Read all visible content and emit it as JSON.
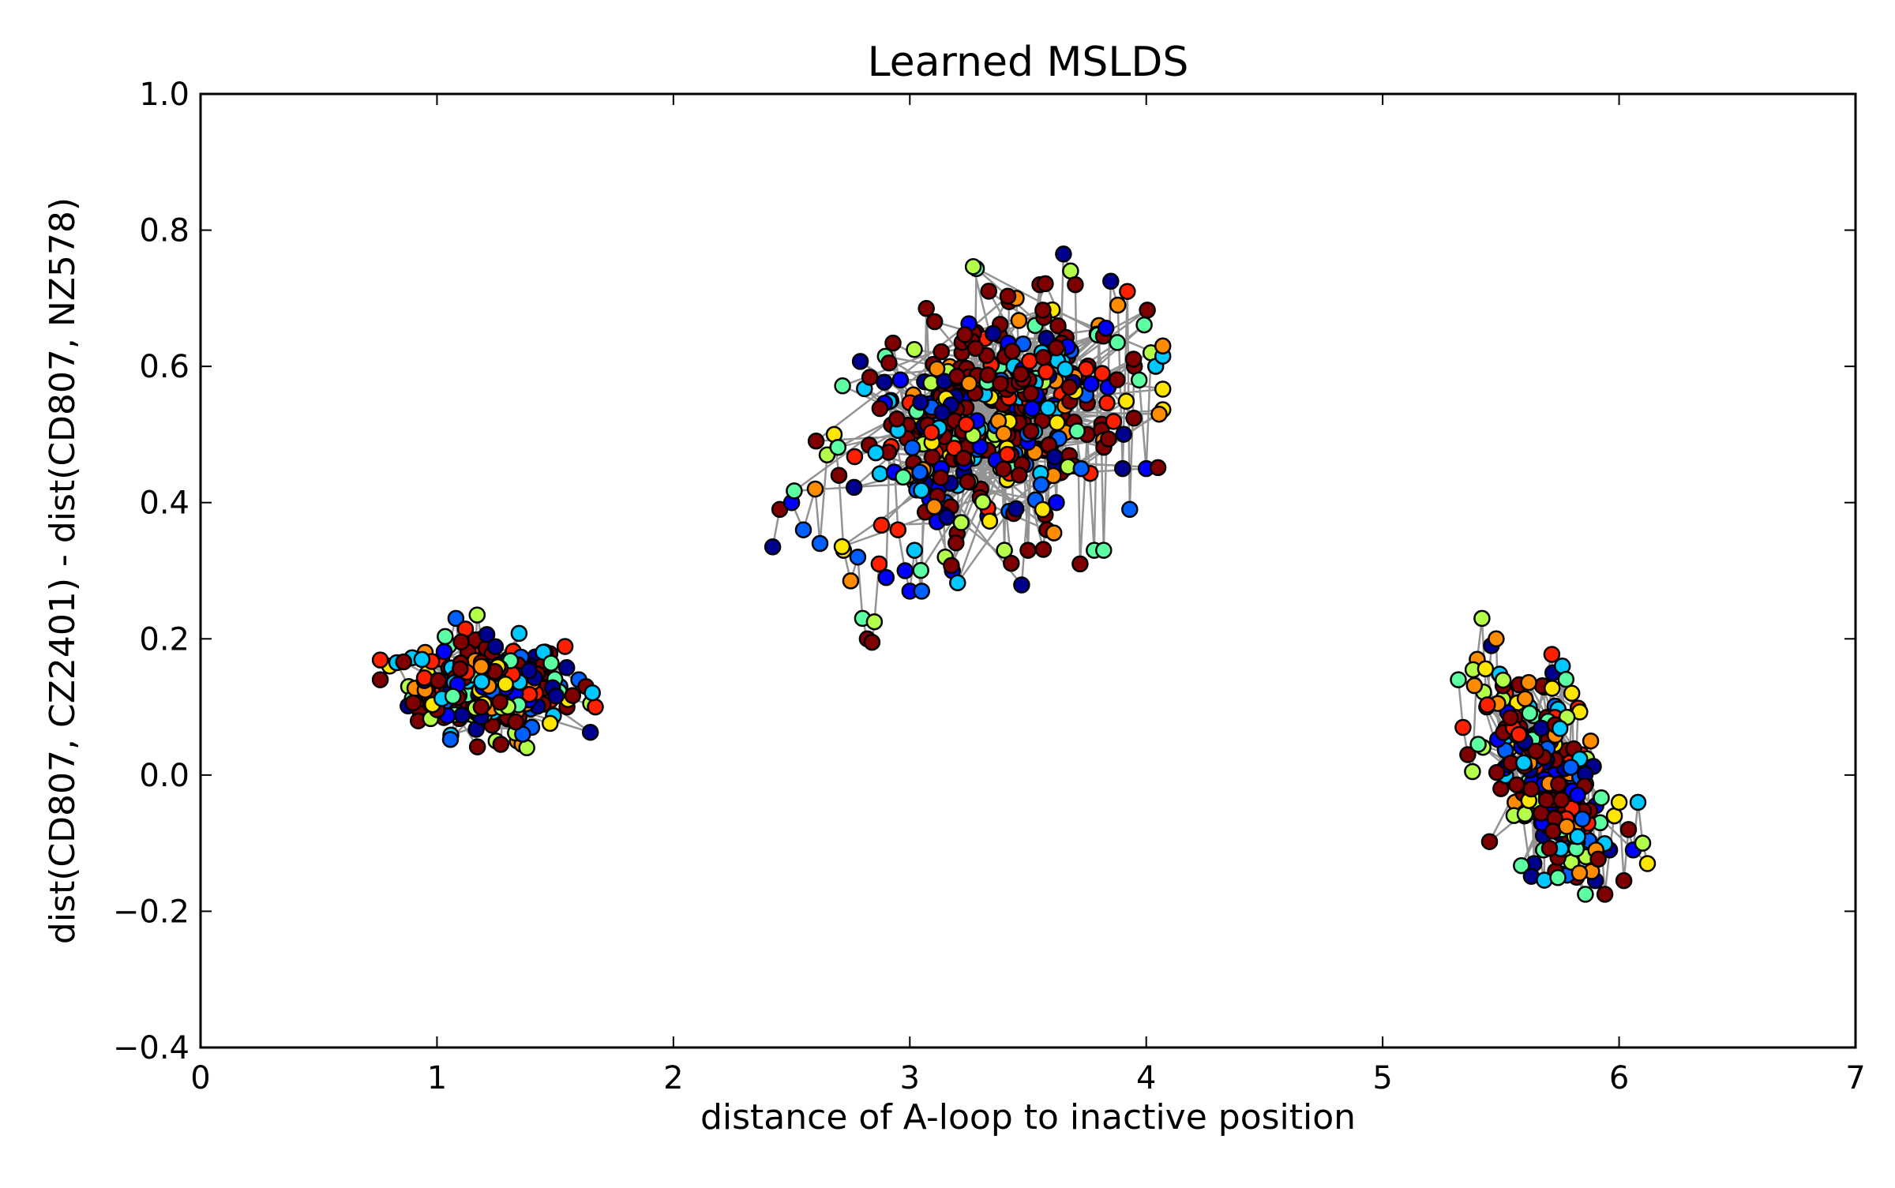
{
  "chart_data": {
    "type": "scatter",
    "title": "Learned MSLDS",
    "xlabel": "distance of A-loop to inactive position",
    "ylabel": "dist(CD807, CZ2401) - dist(CD807, NZ578)",
    "xlim": [
      0,
      7
    ],
    "ylim": [
      -0.4,
      1.0
    ],
    "xticks": [
      0,
      1,
      2,
      3,
      4,
      5,
      6,
      7
    ],
    "xtick_labels": [
      "0",
      "1",
      "2",
      "3",
      "4",
      "5",
      "6",
      "7"
    ],
    "yticks": [
      -0.4,
      -0.2,
      0.0,
      0.2,
      0.4,
      0.6,
      0.8,
      1.0
    ],
    "ytick_labels": [
      "−0.4",
      "−0.2",
      "0.0",
      "0.2",
      "0.4",
      "0.6",
      "0.8",
      "1.0"
    ],
    "grid": false,
    "legend": "none",
    "marker": "circle",
    "line_color": "#808080",
    "marker_edge_color": "#000000",
    "colormap": [
      "#00008f",
      "#0000ff",
      "#0060ff",
      "#00c8ff",
      "#5cffa2",
      "#b4ff4a",
      "#ffe600",
      "#ff8c00",
      "#ff2000",
      "#7f0000"
    ],
    "clusters": [
      {
        "name_hint": "cluster near x=1.2",
        "x_range": [
          0.76,
          1.67
        ],
        "y_range": [
          0.04,
          0.235
        ],
        "center": [
          1.22,
          0.13
        ],
        "points": [
          [
            0.76,
            0.14
          ],
          [
            0.8,
            0.16
          ],
          [
            0.83,
            0.165
          ],
          [
            0.88,
            0.13
          ],
          [
            0.9,
            0.11
          ],
          [
            0.92,
            0.1
          ],
          [
            0.93,
            0.09
          ],
          [
            0.95,
            0.18
          ],
          [
            0.97,
            0.14
          ],
          [
            1.0,
            0.12
          ],
          [
            1.02,
            0.17
          ],
          [
            1.05,
            0.19
          ],
          [
            1.08,
            0.23
          ],
          [
            1.1,
            0.16
          ],
          [
            1.12,
            0.12
          ],
          [
            1.15,
            0.1
          ],
          [
            1.17,
            0.235
          ],
          [
            1.19,
            0.2
          ],
          [
            1.2,
            0.15
          ],
          [
            1.22,
            0.13
          ],
          [
            1.24,
            0.08
          ],
          [
            1.25,
            0.05
          ],
          [
            1.27,
            0.045
          ],
          [
            1.28,
            0.11
          ],
          [
            1.3,
            0.17
          ],
          [
            1.32,
            0.14
          ],
          [
            1.34,
            0.05
          ],
          [
            1.36,
            0.045
          ],
          [
            1.38,
            0.04
          ],
          [
            1.4,
            0.12
          ],
          [
            1.42,
            0.17
          ],
          [
            1.45,
            0.15
          ],
          [
            1.48,
            0.11
          ],
          [
            1.52,
            0.13
          ],
          [
            1.55,
            0.1
          ],
          [
            1.6,
            0.14
          ],
          [
            1.63,
            0.13
          ],
          [
            1.65,
            0.105
          ],
          [
            1.67,
            0.1
          ]
        ]
      },
      {
        "name_hint": "cluster near x=3.3",
        "x_range": [
          2.42,
          4.07
        ],
        "y_range": [
          0.195,
          0.765
        ],
        "center": [
          3.35,
          0.52
        ],
        "points": [
          [
            2.42,
            0.335
          ],
          [
            2.45,
            0.39
          ],
          [
            2.5,
            0.4
          ],
          [
            2.55,
            0.36
          ],
          [
            2.6,
            0.42
          ],
          [
            2.62,
            0.34
          ],
          [
            2.65,
            0.47
          ],
          [
            2.68,
            0.5
          ],
          [
            2.7,
            0.44
          ],
          [
            2.72,
            0.33
          ],
          [
            2.75,
            0.285
          ],
          [
            2.78,
            0.32
          ],
          [
            2.8,
            0.23
          ],
          [
            2.82,
            0.2
          ],
          [
            2.84,
            0.195
          ],
          [
            2.85,
            0.225
          ],
          [
            2.87,
            0.31
          ],
          [
            2.9,
            0.29
          ],
          [
            2.92,
            0.55
          ],
          [
            2.95,
            0.36
          ],
          [
            2.98,
            0.3
          ],
          [
            3.0,
            0.27
          ],
          [
            3.02,
            0.33
          ],
          [
            3.05,
            0.27
          ],
          [
            3.07,
            0.685
          ],
          [
            3.1,
            0.45
          ],
          [
            3.12,
            0.58
          ],
          [
            3.15,
            0.32
          ],
          [
            3.18,
            0.3
          ],
          [
            3.2,
            0.355
          ],
          [
            3.22,
            0.62
          ],
          [
            3.25,
            0.5
          ],
          [
            3.28,
            0.65
          ],
          [
            3.3,
            0.42
          ],
          [
            3.33,
            0.38
          ],
          [
            3.35,
            0.55
          ],
          [
            3.38,
            0.6
          ],
          [
            3.4,
            0.33
          ],
          [
            3.42,
            0.695
          ],
          [
            3.45,
            0.7
          ],
          [
            3.48,
            0.48
          ],
          [
            3.5,
            0.33
          ],
          [
            3.53,
            0.66
          ],
          [
            3.55,
            0.72
          ],
          [
            3.58,
            0.36
          ],
          [
            3.6,
            0.53
          ],
          [
            3.62,
            0.4
          ],
          [
            3.65,
            0.765
          ],
          [
            3.68,
            0.74
          ],
          [
            3.7,
            0.72
          ],
          [
            3.72,
            0.31
          ],
          [
            3.75,
            0.5
          ],
          [
            3.78,
            0.33
          ],
          [
            3.8,
            0.66
          ],
          [
            3.82,
            0.33
          ],
          [
            3.85,
            0.725
          ],
          [
            3.88,
            0.69
          ],
          [
            3.9,
            0.45
          ],
          [
            3.92,
            0.71
          ],
          [
            3.93,
            0.39
          ],
          [
            3.95,
            0.6
          ],
          [
            3.97,
            0.58
          ],
          [
            4.0,
            0.45
          ],
          [
            4.02,
            0.62
          ],
          [
            4.04,
            0.6
          ],
          [
            4.07,
            0.615
          ]
        ]
      },
      {
        "name_hint": "cluster near x=5.7",
        "x_range": [
          5.32,
          6.12
        ],
        "y_range": [
          -0.175,
          0.23
        ],
        "center": [
          5.7,
          0.0
        ],
        "points": [
          [
            5.32,
            0.14
          ],
          [
            5.34,
            0.07
          ],
          [
            5.36,
            0.03
          ],
          [
            5.38,
            0.005
          ],
          [
            5.4,
            0.17
          ],
          [
            5.42,
            0.23
          ],
          [
            5.44,
            0.1
          ],
          [
            5.46,
            0.19
          ],
          [
            5.48,
            0.2
          ],
          [
            5.5,
            -0.02
          ],
          [
            5.52,
            0.12
          ],
          [
            5.54,
            0.04
          ],
          [
            5.56,
            -0.04
          ],
          [
            5.58,
            0.07
          ],
          [
            5.6,
            -0.06
          ],
          [
            5.62,
            0.1
          ],
          [
            5.64,
            -0.13
          ],
          [
            5.66,
            0.01
          ],
          [
            5.68,
            -0.11
          ],
          [
            5.7,
            0.08
          ],
          [
            5.72,
            0.15
          ],
          [
            5.74,
            -0.08
          ],
          [
            5.76,
            0.16
          ],
          [
            5.78,
            -0.1
          ],
          [
            5.8,
            0.12
          ],
          [
            5.82,
            -0.15
          ],
          [
            5.84,
            0.03
          ],
          [
            5.86,
            -0.12
          ],
          [
            5.88,
            0.05
          ],
          [
            5.9,
            -0.155
          ],
          [
            5.92,
            -0.07
          ],
          [
            5.94,
            -0.175
          ],
          [
            5.96,
            -0.11
          ],
          [
            5.98,
            -0.06
          ],
          [
            6.0,
            -0.04
          ],
          [
            6.02,
            -0.155
          ],
          [
            6.04,
            -0.08
          ],
          [
            6.06,
            -0.11
          ],
          [
            6.08,
            -0.04
          ],
          [
            6.1,
            -0.1
          ],
          [
            6.12,
            -0.13
          ]
        ]
      }
    ]
  }
}
